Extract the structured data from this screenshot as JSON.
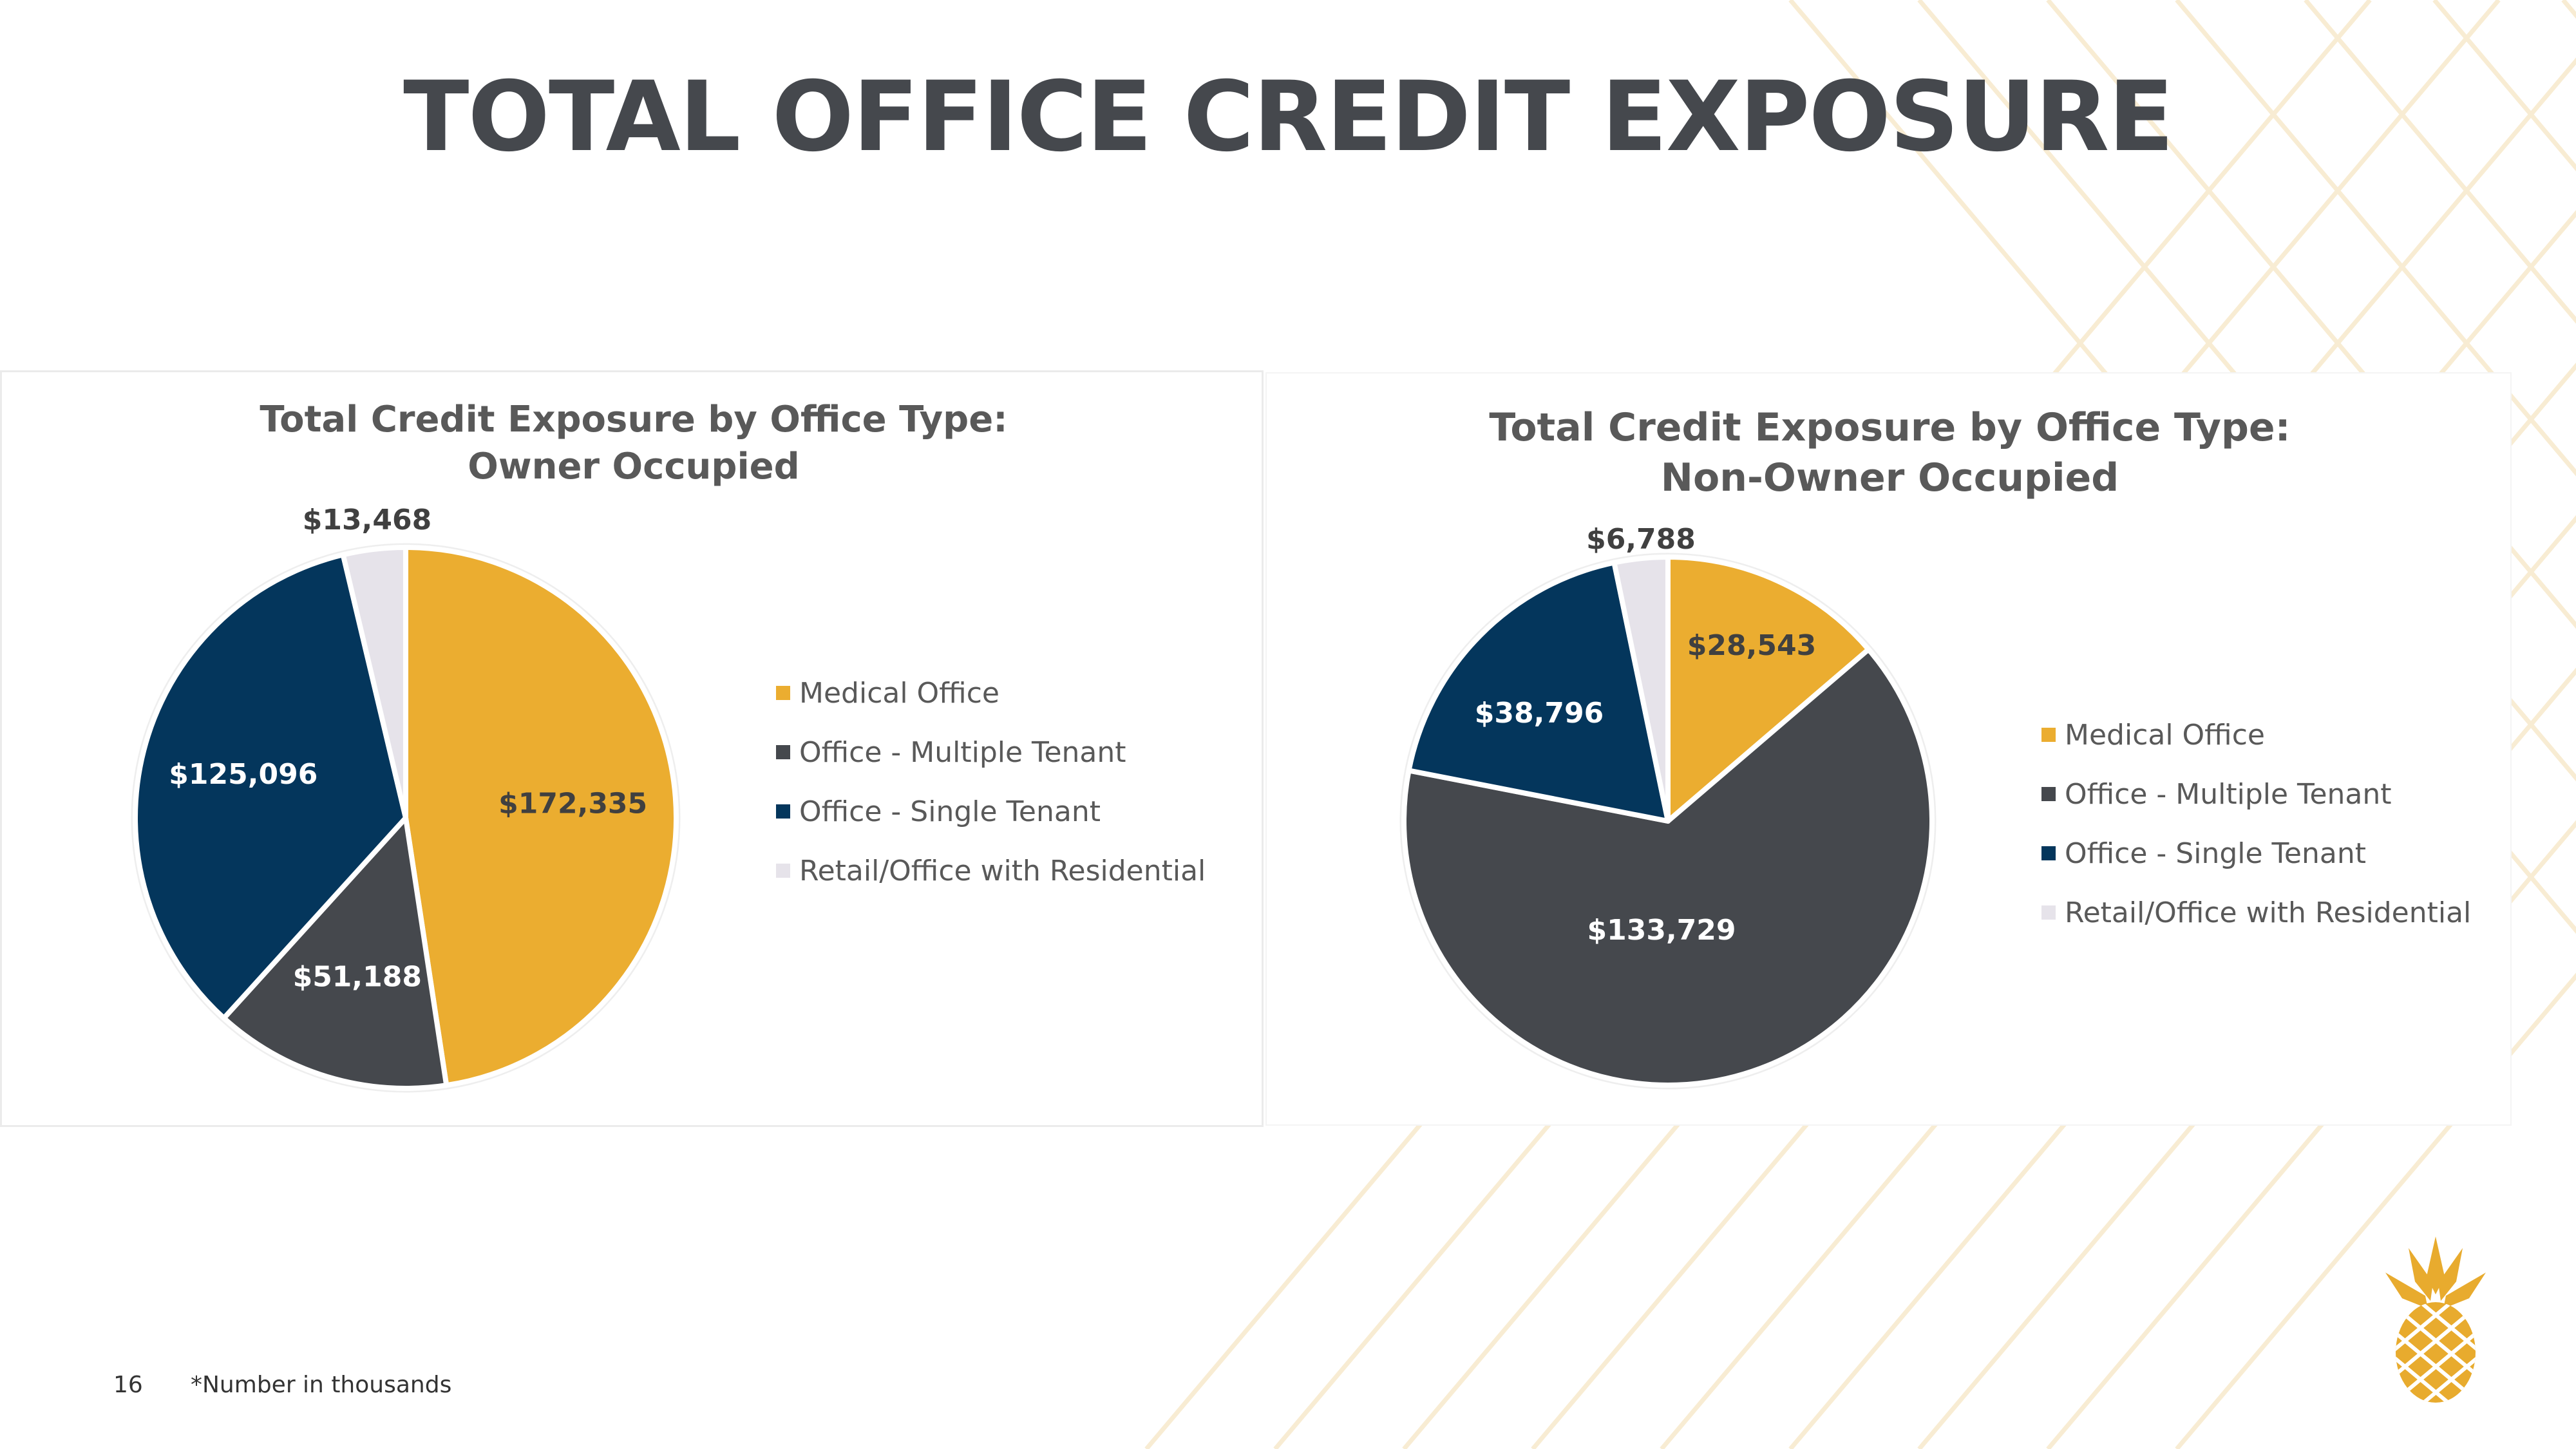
{
  "page": {
    "title": "TOTAL OFFICE CREDIT EXPOSURE",
    "page_number": "16",
    "footnote": "*Number in thousands",
    "logo_icon": "pineapple-icon"
  },
  "colors": {
    "medical_office": "#ebad30",
    "office_multiple_tenant": "#45484d",
    "office_single_tenant": "#04365c",
    "retail_office_residential": "#e6e3ea",
    "title_text": "#45484d",
    "chart_text": "#595959",
    "pattern_line": "#f8ecd3",
    "logo_gold": "#e8ab2e"
  },
  "chart_data": [
    {
      "type": "pie",
      "title_line1": "Total Credit Exposure by Office Type:",
      "title_line2": "Owner Occupied",
      "categories": [
        "Medical Office",
        "Office - Multiple Tenant",
        "Office - Single Tenant",
        "Retail/Office with Residential"
      ],
      "values": [
        172335,
        51188,
        125096,
        13468
      ],
      "data_labels": [
        "$172,335",
        "$51,188",
        "$125,096",
        "$13,468"
      ],
      "legend_position": "right",
      "start_angle": "12 o'clock, clockwise"
    },
    {
      "type": "pie",
      "title_line1": "Total Credit Exposure by Office Type:",
      "title_line2": "Non-Owner Occupied",
      "categories": [
        "Medical Office",
        "Office - Multiple Tenant",
        "Office - Single Tenant",
        "Retail/Office with Residential"
      ],
      "values": [
        28543,
        133729,
        38796,
        6788
      ],
      "data_labels": [
        "$28,543",
        "$133,729",
        "$38,796",
        "$6,788"
      ],
      "legend_position": "right",
      "start_angle": "12 o'clock, clockwise"
    }
  ]
}
